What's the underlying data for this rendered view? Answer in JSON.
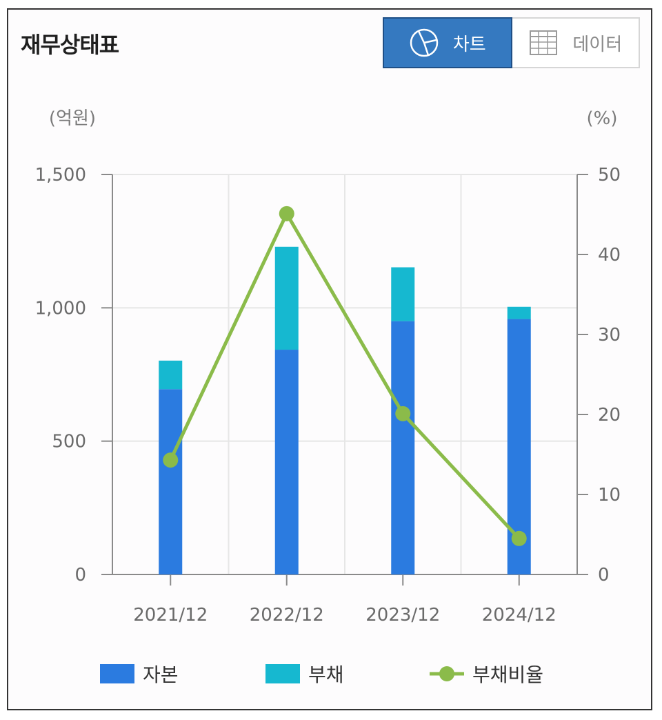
{
  "header": {
    "title": "재무상태표"
  },
  "view_toggle": {
    "chart_label": "차트",
    "chart_icon": "pie-chart-icon",
    "data_label": "데이터",
    "data_icon": "table-grid-icon",
    "active": "chart"
  },
  "colors": {
    "equity": "#2b7be0",
    "liabilities": "#16b8d0",
    "ratio": "#8bbb4a",
    "axis": "#8a8a8a",
    "grid": "#e6e6e6"
  },
  "chart_data": {
    "type": "bar",
    "stacked": true,
    "categories": [
      "2021/12",
      "2022/12",
      "2023/12",
      "2024/12"
    ],
    "y_left": {
      "unit": "(억원)",
      "ylim": [
        0,
        1500
      ],
      "ticks": [
        0,
        500,
        1000,
        1500
      ],
      "tick_labels": [
        "0",
        "500",
        "1,000",
        "1,500"
      ]
    },
    "y_right": {
      "unit": "(%)",
      "ylim": [
        0,
        50
      ],
      "ticks": [
        0,
        10,
        20,
        30,
        40,
        50
      ],
      "tick_labels": [
        "0",
        "10",
        "20",
        "30",
        "40",
        "50"
      ]
    },
    "series": [
      {
        "name": "자본",
        "type": "bar",
        "axis": "left",
        "values": [
          695,
          843,
          950,
          958
        ]
      },
      {
        "name": "부채",
        "type": "bar",
        "axis": "left",
        "values": [
          107,
          386,
          202,
          46
        ]
      },
      {
        "name": "부채비율",
        "type": "line",
        "axis": "right",
        "values": [
          14.3,
          45.1,
          20.1,
          4.5
        ]
      }
    ],
    "grid": true,
    "legend": "bottom"
  }
}
